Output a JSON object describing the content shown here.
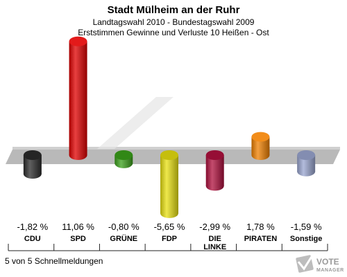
{
  "header": {
    "title": "Stadt Mülheim an der Ruhr",
    "subtitle1": "Landtagswahl 2010 - Bundestagswahl 2009",
    "subtitle2": "Erststimmen Gewinne und Verluste 10 Heißen - Ost"
  },
  "chart_data": {
    "type": "bar",
    "categories": [
      "CDU",
      "SPD",
      "GRÜNE",
      "FDP",
      "DIE\nLINKE",
      "PIRATEN",
      "Sonstige"
    ],
    "values": [
      -1.82,
      11.06,
      -0.8,
      -5.65,
      -2.99,
      1.78,
      -1.59
    ],
    "value_labels": [
      "-1,82 %",
      "11,06 %",
      "-0,80 %",
      "-5,65 %",
      "-2,99 %",
      "1,78 %",
      "-1,59 %"
    ],
    "colors": [
      "#2b2b2b",
      "#e00000",
      "#3aa01a",
      "#e8e010",
      "#b0103e",
      "#f08000",
      "#9aa6d0"
    ],
    "style": "3d-cylinder"
  },
  "footer": {
    "status": "5 von 5 Schnellmeldungen"
  },
  "logo": {
    "line1": "VOTE",
    "line2": "MANAGER",
    "icon": "checkmark-ballot-icon"
  }
}
